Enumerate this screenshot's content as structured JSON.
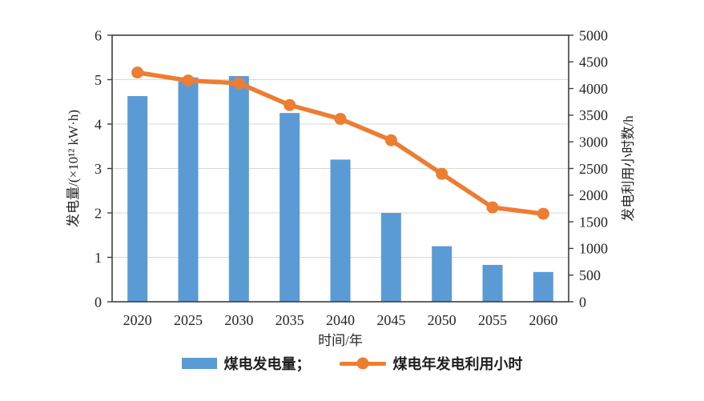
{
  "colors": {
    "bar": "#5b9bd5",
    "line": "#ed7d31",
    "grid": "#d9d9d9",
    "axis": "#3f3f3f",
    "text": "#262626",
    "background": "#ffffff"
  },
  "chart_data": {
    "type": "bar+line combo",
    "title": "",
    "categories": [
      "2020",
      "2025",
      "2030",
      "2035",
      "2040",
      "2045",
      "2050",
      "2055",
      "2060"
    ],
    "series": [
      {
        "name": "煤电发电量",
        "type": "bar",
        "axis": "left",
        "color": "#5b9bd5",
        "values": [
          4.63,
          5.05,
          5.08,
          4.25,
          3.2,
          2.0,
          1.25,
          0.83,
          0.67
        ]
      },
      {
        "name": "煤电年发电利用小时",
        "type": "line",
        "axis": "right",
        "color": "#ed7d31",
        "values": [
          4300,
          4150,
          4100,
          3690,
          3430,
          3030,
          2400,
          1770,
          1650
        ]
      }
    ],
    "x_axis": {
      "label": "时间/年",
      "tick_labels": [
        "2020",
        "2025",
        "2030",
        "2035",
        "2040",
        "2045",
        "2050",
        "2055",
        "2060"
      ]
    },
    "left_axis": {
      "label": "发电量/(×10¹² kW·h)",
      "min": 0,
      "max": 6,
      "step": 1,
      "tick_labels": [
        "0",
        "1",
        "2",
        "3",
        "4",
        "5",
        "6"
      ]
    },
    "right_axis": {
      "label": "发电利用小时数/h",
      "min": 0,
      "max": 5000,
      "step": 500,
      "tick_labels": [
        "0",
        "500",
        "1000",
        "1500",
        "2000",
        "2500",
        "3000",
        "3500",
        "4000",
        "4500",
        "5000"
      ]
    },
    "grid": true,
    "legend_position": "bottom"
  },
  "legend": {
    "bar_label": "煤电发电量；",
    "line_label": "煤电年发电利用小时"
  }
}
